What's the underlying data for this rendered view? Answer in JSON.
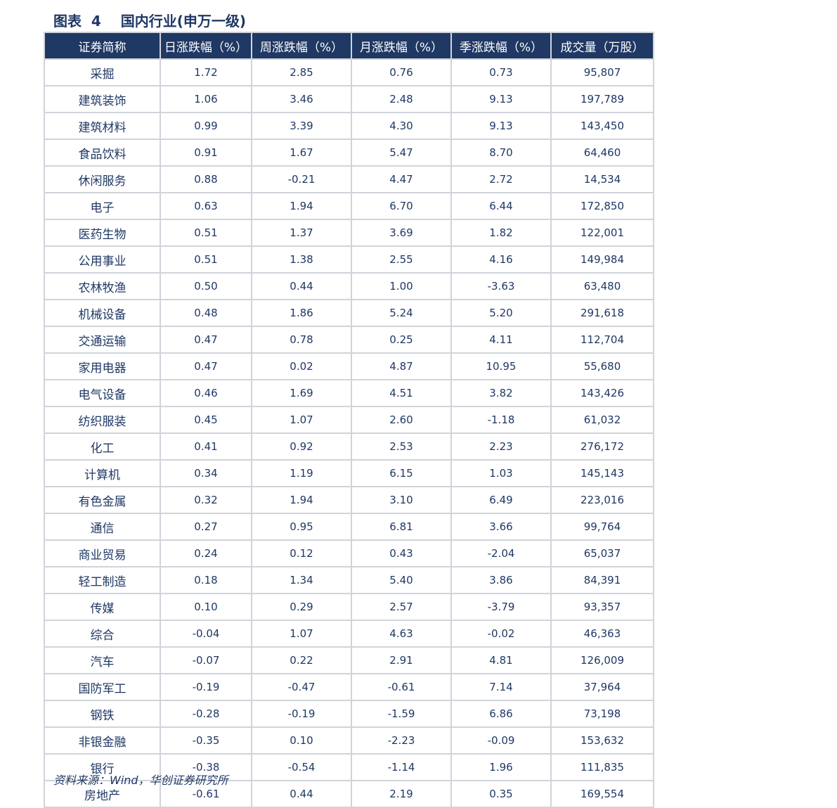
{
  "title": "图表  4    国内行业(申万一级)",
  "headers": [
    "证券简称",
    "日涨跌幅（%）",
    "周涨跌幅（%）",
    "月涨跌幅（%）",
    "季涨跌幅（%）",
    "成交量（万股）"
  ],
  "rows": [
    [
      "采掘",
      "1.72",
      "2.85",
      "0.76",
      "0.73",
      "95,807"
    ],
    [
      "建筑装饰",
      "1.06",
      "3.46",
      "2.48",
      "9.13",
      "197,789"
    ],
    [
      "建筑材料",
      "0.99",
      "3.39",
      "4.30",
      "9.13",
      "143,450"
    ],
    [
      "食品饮料",
      "0.91",
      "1.67",
      "5.47",
      "8.70",
      "64,460"
    ],
    [
      "休闲服务",
      "0.88",
      "-0.21",
      "4.47",
      "2.72",
      "14,534"
    ],
    [
      "电子",
      "0.63",
      "1.94",
      "6.70",
      "6.44",
      "172,850"
    ],
    [
      "医药生物",
      "0.51",
      "1.37",
      "3.69",
      "1.82",
      "122,001"
    ],
    [
      "公用事业",
      "0.51",
      "1.38",
      "2.55",
      "4.16",
      "149,984"
    ],
    [
      "农林牧渔",
      "0.50",
      "0.44",
      "1.00",
      "-3.63",
      "63,480"
    ],
    [
      "机械设备",
      "0.48",
      "1.86",
      "5.24",
      "5.20",
      "291,618"
    ],
    [
      "交通运输",
      "0.47",
      "0.78",
      "0.25",
      "4.11",
      "112,704"
    ],
    [
      "家用电器",
      "0.47",
      "0.02",
      "4.87",
      "10.95",
      "55,680"
    ],
    [
      "电气设备",
      "0.46",
      "1.69",
      "4.51",
      "3.82",
      "143,426"
    ],
    [
      "纺织服装",
      "0.45",
      "1.07",
      "2.60",
      "-1.18",
      "61,032"
    ],
    [
      "化工",
      "0.41",
      "0.92",
      "2.53",
      "2.23",
      "276,172"
    ],
    [
      "计算机",
      "0.34",
      "1.19",
      "6.15",
      "1.03",
      "145,143"
    ],
    [
      "有色金属",
      "0.32",
      "1.94",
      "3.10",
      "6.49",
      "223,016"
    ],
    [
      "通信",
      "0.27",
      "0.95",
      "6.81",
      "3.66",
      "99,764"
    ],
    [
      "商业贸易",
      "0.24",
      "0.12",
      "0.43",
      "-2.04",
      "65,037"
    ],
    [
      "轻工制造",
      "0.18",
      "1.34",
      "5.40",
      "3.86",
      "84,391"
    ],
    [
      "传媒",
      "0.10",
      "0.29",
      "2.57",
      "-3.79",
      "93,357"
    ],
    [
      "综合",
      "-0.04",
      "1.07",
      "4.63",
      "-0.02",
      "46,363"
    ],
    [
      "汽车",
      "-0.07",
      "0.22",
      "2.91",
      "4.81",
      "126,009"
    ],
    [
      "国防军工",
      "-0.19",
      "-0.47",
      "-0.61",
      "7.14",
      "37,964"
    ],
    [
      "钢铁",
      "-0.28",
      "-0.19",
      "-1.59",
      "6.86",
      "73,198"
    ],
    [
      "非银金融",
      "-0.35",
      "0.10",
      "-2.23",
      "-0.09",
      "153,632"
    ],
    [
      "银行",
      "-0.38",
      "-0.54",
      "-1.14",
      "1.96",
      "111,835"
    ],
    [
      "房地产",
      "-0.61",
      "0.44",
      "2.19",
      "0.35",
      "169,554"
    ]
  ],
  "source": "资料来源：Wind，华创证券研究所",
  "colors": {
    "header_bg": "#1f3864",
    "text": "#1f3864",
    "grid": "#d0d4da"
  }
}
